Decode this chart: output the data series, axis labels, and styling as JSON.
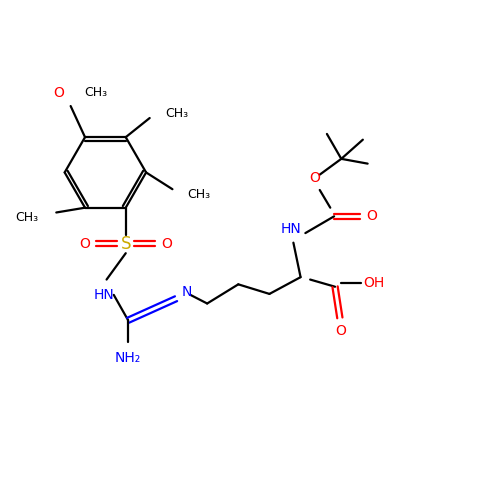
{
  "bg_color": "#ffffff",
  "black": "#000000",
  "red": "#ff0000",
  "blue": "#0000ff",
  "lw": 1.6,
  "fs": 10,
  "fs_sm": 9,
  "figsize": [
    4.79,
    4.79
  ],
  "dpi": 100,
  "xlim": [
    0,
    10
  ],
  "ylim": [
    0,
    10
  ]
}
